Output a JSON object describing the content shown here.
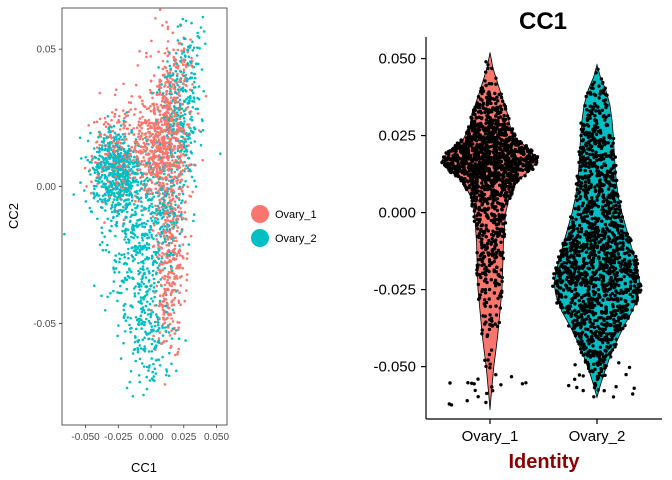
{
  "colors": {
    "ovary_1": "#F8766D",
    "ovary_2": "#00BFC4",
    "points_right": "#000000",
    "identity_label": "#8B0000"
  },
  "chart_data": [
    {
      "type": "scatter",
      "title": "",
      "xlabel": "CC1",
      "ylabel": "CC2",
      "xlim": [
        -0.068,
        0.058
      ],
      "ylim": [
        -0.087,
        0.065
      ],
      "x_ticks": [
        {
          "value": -0.05,
          "label": "-0.050"
        },
        {
          "value": -0.025,
          "label": "-0.025"
        },
        {
          "value": 0.0,
          "label": "0.000"
        },
        {
          "value": 0.025,
          "label": "0.025"
        },
        {
          "value": 0.05,
          "label": "0.050"
        }
      ],
      "y_ticks": [
        {
          "value": 0.05,
          "label": "0.05"
        },
        {
          "value": 0.0,
          "label": "0.00"
        },
        {
          "value": -0.05,
          "label": "-0.05"
        }
      ],
      "grid": false,
      "legend_position": "right",
      "series": [
        {
          "name": "Ovary_1",
          "clusters": [
            {
              "cx": 0.013,
              "cy": 0.022,
              "sx": 0.009,
              "sy": 0.014,
              "n": 520
            },
            {
              "cx": 0.003,
              "cy": 0.012,
              "sx": 0.008,
              "sy": 0.007,
              "n": 230
            },
            {
              "cx": -0.025,
              "cy": 0.012,
              "sx": 0.011,
              "sy": 0.009,
              "n": 240
            },
            {
              "cx": 0.015,
              "cy": -0.018,
              "sx": 0.006,
              "sy": 0.016,
              "n": 280
            },
            {
              "cx": 0.013,
              "cy": -0.045,
              "sx": 0.005,
              "sy": 0.009,
              "n": 90
            },
            {
              "cx": 0.022,
              "cy": 0.042,
              "sx": 0.005,
              "sy": 0.008,
              "n": 45
            }
          ]
        },
        {
          "name": "Ovary_2",
          "clusters": [
            {
              "cx": -0.027,
              "cy": 0.005,
              "sx": 0.01,
              "sy": 0.008,
              "n": 560
            },
            {
              "cx": -0.01,
              "cy": -0.022,
              "sx": 0.011,
              "sy": 0.014,
              "n": 360
            },
            {
              "cx": -0.002,
              "cy": -0.052,
              "sx": 0.009,
              "sy": 0.01,
              "n": 180
            },
            {
              "cx": 0.012,
              "cy": -0.005,
              "sx": 0.008,
              "sy": 0.011,
              "n": 200
            },
            {
              "cx": 0.023,
              "cy": 0.028,
              "sx": 0.008,
              "sy": 0.012,
              "n": 240
            },
            {
              "cx": 0.03,
              "cy": 0.048,
              "sx": 0.005,
              "sy": 0.006,
              "n": 40
            }
          ]
        }
      ]
    },
    {
      "type": "violin",
      "title": "CC1",
      "xlabel": "Identity",
      "ylabel": "",
      "ylim": [
        -0.067,
        0.057
      ],
      "categories": [
        "Ovary_1",
        "Ovary_2"
      ],
      "y_ticks": [
        {
          "value": 0.05,
          "label": "0.050"
        },
        {
          "value": 0.025,
          "label": "0.025"
        },
        {
          "value": 0.0,
          "label": "0.000"
        },
        {
          "value": -0.025,
          "label": "-0.025"
        },
        {
          "value": -0.05,
          "label": "-0.050"
        }
      ],
      "grid": false,
      "series": [
        {
          "name": "Ovary_1",
          "y_range": [
            -0.064,
            0.051
          ],
          "density_profile": [
            [
              0.052,
              0.0
            ],
            [
              0.047,
              0.06
            ],
            [
              0.04,
              0.2
            ],
            [
              0.033,
              0.35
            ],
            [
              0.028,
              0.42
            ],
            [
              0.024,
              0.55
            ],
            [
              0.02,
              0.85
            ],
            [
              0.017,
              1.0
            ],
            [
              0.014,
              0.85
            ],
            [
              0.01,
              0.55
            ],
            [
              0.005,
              0.4
            ],
            [
              0.0,
              0.33
            ],
            [
              -0.005,
              0.3
            ],
            [
              -0.01,
              0.28
            ],
            [
              -0.015,
              0.27
            ],
            [
              -0.02,
              0.26
            ],
            [
              -0.025,
              0.25
            ],
            [
              -0.03,
              0.22
            ],
            [
              -0.035,
              0.19
            ],
            [
              -0.04,
              0.16
            ],
            [
              -0.045,
              0.12
            ],
            [
              -0.05,
              0.08
            ],
            [
              -0.055,
              0.05
            ],
            [
              -0.06,
              0.02
            ],
            [
              -0.064,
              0.0
            ]
          ],
          "point_clusters": [
            {
              "cy": 0.017,
              "sy": 0.006,
              "n": 900
            },
            {
              "cy": 0.0,
              "sy": 0.02,
              "n": 500
            },
            {
              "cy": 0.03,
              "sy": 0.007,
              "n": 150
            }
          ]
        },
        {
          "name": "Ovary_2",
          "y_range": [
            -0.06,
            0.048
          ],
          "density_profile": [
            [
              0.048,
              0.0
            ],
            [
              0.044,
              0.08
            ],
            [
              0.04,
              0.2
            ],
            [
              0.035,
              0.3
            ],
            [
              0.03,
              0.35
            ],
            [
              0.025,
              0.38
            ],
            [
              0.02,
              0.4
            ],
            [
              0.015,
              0.42
            ],
            [
              0.01,
              0.45
            ],
            [
              0.005,
              0.5
            ],
            [
              0.0,
              0.58
            ],
            [
              -0.005,
              0.68
            ],
            [
              -0.01,
              0.78
            ],
            [
              -0.015,
              0.88
            ],
            [
              -0.02,
              0.96
            ],
            [
              -0.023,
              1.0
            ],
            [
              -0.027,
              0.95
            ],
            [
              -0.032,
              0.82
            ],
            [
              -0.037,
              0.62
            ],
            [
              -0.042,
              0.45
            ],
            [
              -0.047,
              0.3
            ],
            [
              -0.052,
              0.17
            ],
            [
              -0.056,
              0.08
            ],
            [
              -0.06,
              0.0
            ]
          ],
          "point_clusters": [
            {
              "cy": -0.02,
              "sy": 0.012,
              "n": 900
            },
            {
              "cy": 0.012,
              "sy": 0.016,
              "n": 500
            },
            {
              "cy": -0.04,
              "sy": 0.008,
              "n": 150
            }
          ]
        }
      ]
    }
  ]
}
